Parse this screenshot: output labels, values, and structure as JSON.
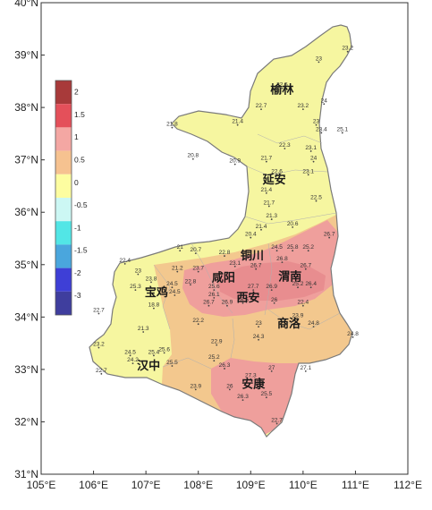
{
  "axes": {
    "lat_labels": [
      "40°N",
      "39°N",
      "38°N",
      "37°N",
      "36°N",
      "35°N",
      "34°N",
      "33°N",
      "32°N",
      "31°N"
    ],
    "lon_labels": [
      "105°E",
      "106°E",
      "107°E",
      "108°E",
      "109°E",
      "110°E",
      "111°E",
      "112°E"
    ],
    "lat_range": [
      31,
      40
    ],
    "lon_range": [
      105,
      112
    ]
  },
  "legend": {
    "labels": [
      "2",
      "1.5",
      "1",
      "0.5",
      "0",
      "-0.5",
      "-1",
      "-1.5",
      "-2",
      "-3"
    ],
    "colors": [
      "#a83a3a",
      "#e4505a",
      "#f4a7a3",
      "#f6c290",
      "#fdfda0",
      "#ccf7f4",
      "#52e6e6",
      "#4aa6dd",
      "#3e3fd6",
      "#3f3e9e"
    ]
  },
  "colors": {
    "province_yellow": "#f6f6a0",
    "orange_zone": "#f3c88e",
    "pink_zone": "#ef9f9c",
    "deep_pink_zone": "#e88d8f",
    "border": "#888888"
  },
  "cities": [
    {
      "name": "榆林",
      "lon": 109.6,
      "lat": 38.27
    },
    {
      "name": "延安",
      "lon": 109.45,
      "lat": 36.55
    },
    {
      "name": "铜川",
      "lon": 109.03,
      "lat": 35.1
    },
    {
      "name": "渭南",
      "lon": 109.75,
      "lat": 34.7
    },
    {
      "name": "咸阳",
      "lon": 108.48,
      "lat": 34.68
    },
    {
      "name": "宝鸡",
      "lon": 107.2,
      "lat": 34.4
    },
    {
      "name": "西安",
      "lon": 108.95,
      "lat": 34.3
    },
    {
      "name": "商洛",
      "lon": 109.73,
      "lat": 33.8
    },
    {
      "name": "汉中",
      "lon": 107.05,
      "lat": 33.0
    },
    {
      "name": "安康",
      "lon": 109.05,
      "lat": 32.65
    }
  ],
  "stations": [
    {
      "value": "23.2",
      "lon": 110.85,
      "lat": 39.1
    },
    {
      "value": "23",
      "lon": 110.3,
      "lat": 38.9
    },
    {
      "value": "22.5",
      "lon": 109.6,
      "lat": 38.4
    },
    {
      "value": "22.7",
      "lon": 109.2,
      "lat": 38.0
    },
    {
      "value": "24",
      "lon": 110.4,
      "lat": 38.1
    },
    {
      "value": "23.2",
      "lon": 110.0,
      "lat": 38.0
    },
    {
      "value": "23",
      "lon": 110.25,
      "lat": 37.7
    },
    {
      "value": "23.4",
      "lon": 110.35,
      "lat": 37.55
    },
    {
      "value": "21.4",
      "lon": 108.75,
      "lat": 37.7
    },
    {
      "value": "25.1",
      "lon": 110.75,
      "lat": 37.55
    },
    {
      "value": "21.8",
      "lon": 107.5,
      "lat": 37.65
    },
    {
      "value": "22.3",
      "lon": 109.65,
      "lat": 37.25
    },
    {
      "value": "23.1",
      "lon": 110.15,
      "lat": 37.2
    },
    {
      "value": "24",
      "lon": 110.2,
      "lat": 37.0
    },
    {
      "value": "20.8",
      "lon": 107.9,
      "lat": 37.05
    },
    {
      "value": "20.9",
      "lon": 108.7,
      "lat": 36.95
    },
    {
      "value": "21.7",
      "lon": 109.3,
      "lat": 37.0
    },
    {
      "value": "22.6",
      "lon": 109.5,
      "lat": 36.75
    },
    {
      "value": "23.1",
      "lon": 110.1,
      "lat": 36.75
    },
    {
      "value": "21.4",
      "lon": 109.3,
      "lat": 36.4
    },
    {
      "value": "22.5",
      "lon": 110.25,
      "lat": 36.25
    },
    {
      "value": "21.7",
      "lon": 109.35,
      "lat": 36.15
    },
    {
      "value": "21.3",
      "lon": 109.4,
      "lat": 35.9
    },
    {
      "value": "21.4",
      "lon": 109.2,
      "lat": 35.7
    },
    {
      "value": "20.6",
      "lon": 109.8,
      "lat": 35.75
    },
    {
      "value": "20.4",
      "lon": 109.0,
      "lat": 35.55
    },
    {
      "value": "26.7",
      "lon": 110.5,
      "lat": 35.55
    },
    {
      "value": "21",
      "lon": 107.65,
      "lat": 35.3
    },
    {
      "value": "20.7",
      "lon": 107.95,
      "lat": 35.25
    },
    {
      "value": "22.8",
      "lon": 108.5,
      "lat": 35.2
    },
    {
      "value": "24.5",
      "lon": 109.5,
      "lat": 35.3
    },
    {
      "value": "25.8",
      "lon": 109.8,
      "lat": 35.3
    },
    {
      "value": "25.2",
      "lon": 110.1,
      "lat": 35.3
    },
    {
      "value": "26.8",
      "lon": 109.6,
      "lat": 35.08
    },
    {
      "value": "22.4",
      "lon": 106.6,
      "lat": 35.05
    },
    {
      "value": "23.1",
      "lon": 108.7,
      "lat": 35.0
    },
    {
      "value": "26.7",
      "lon": 109.1,
      "lat": 34.95
    },
    {
      "value": "26.7",
      "lon": 110.05,
      "lat": 34.95
    },
    {
      "value": "21.2",
      "lon": 107.6,
      "lat": 34.9
    },
    {
      "value": "23.7",
      "lon": 108.0,
      "lat": 34.9
    },
    {
      "value": "23",
      "lon": 106.85,
      "lat": 34.85
    },
    {
      "value": "23.8",
      "lon": 107.1,
      "lat": 34.7
    },
    {
      "value": "24.5",
      "lon": 107.5,
      "lat": 34.6
    },
    {
      "value": "25.3",
      "lon": 106.8,
      "lat": 34.55
    },
    {
      "value": "22.8",
      "lon": 107.85,
      "lat": 34.65
    },
    {
      "value": "25.6",
      "lon": 108.3,
      "lat": 34.55
    },
    {
      "value": "27.7",
      "lon": 109.05,
      "lat": 34.55
    },
    {
      "value": "26.9",
      "lon": 109.4,
      "lat": 34.55
    },
    {
      "value": "25.2",
      "lon": 109.9,
      "lat": 34.6
    },
    {
      "value": "26.4",
      "lon": 110.15,
      "lat": 34.6
    },
    {
      "value": "24.5",
      "lon": 107.55,
      "lat": 34.45
    },
    {
      "value": "26.1",
      "lon": 108.3,
      "lat": 34.4
    },
    {
      "value": "26.7",
      "lon": 108.2,
      "lat": 34.25
    },
    {
      "value": "26.9",
      "lon": 108.55,
      "lat": 34.25
    },
    {
      "value": "26.5",
      "lon": 108.85,
      "lat": 34.3
    },
    {
      "value": "26",
      "lon": 109.45,
      "lat": 34.3
    },
    {
      "value": "18.8",
      "lon": 107.15,
      "lat": 34.2
    },
    {
      "value": "22.7",
      "lon": 106.1,
      "lat": 34.1
    },
    {
      "value": "22.4",
      "lon": 110.0,
      "lat": 34.25
    },
    {
      "value": "23.9",
      "lon": 109.9,
      "lat": 34.0
    },
    {
      "value": "22.2",
      "lon": 108.0,
      "lat": 33.9
    },
    {
      "value": "23",
      "lon": 109.15,
      "lat": 33.85
    },
    {
      "value": "24.8",
      "lon": 110.2,
      "lat": 33.85
    },
    {
      "value": "21.3",
      "lon": 106.95,
      "lat": 33.75
    },
    {
      "value": "24.3",
      "lon": 109.15,
      "lat": 33.6
    },
    {
      "value": "24.8",
      "lon": 110.95,
      "lat": 33.65
    },
    {
      "value": "23.2",
      "lon": 106.1,
      "lat": 33.45
    },
    {
      "value": "22.9",
      "lon": 108.35,
      "lat": 33.5
    },
    {
      "value": "24.5",
      "lon": 106.7,
      "lat": 33.3
    },
    {
      "value": "25.6",
      "lon": 107.35,
      "lat": 33.35
    },
    {
      "value": "25.4",
      "lon": 107.15,
      "lat": 33.3
    },
    {
      "value": "24.2",
      "lon": 106.75,
      "lat": 33.15
    },
    {
      "value": "25.5",
      "lon": 107.5,
      "lat": 33.1
    },
    {
      "value": "25.2",
      "lon": 108.3,
      "lat": 33.2
    },
    {
      "value": "26.3",
      "lon": 108.5,
      "lat": 33.05
    },
    {
      "value": "27.1",
      "lon": 110.05,
      "lat": 33.0
    },
    {
      "value": "22.7",
      "lon": 106.15,
      "lat": 32.95
    },
    {
      "value": "27",
      "lon": 109.4,
      "lat": 33.0
    },
    {
      "value": "27.3",
      "lon": 109.0,
      "lat": 32.85
    },
    {
      "value": "23.9",
      "lon": 107.95,
      "lat": 32.65
    },
    {
      "value": "26",
      "lon": 108.6,
      "lat": 32.65
    },
    {
      "value": "25.5",
      "lon": 109.3,
      "lat": 32.5
    },
    {
      "value": "26.3",
      "lon": 108.85,
      "lat": 32.45
    },
    {
      "value": "22.7",
      "lon": 109.5,
      "lat": 32.0
    }
  ]
}
